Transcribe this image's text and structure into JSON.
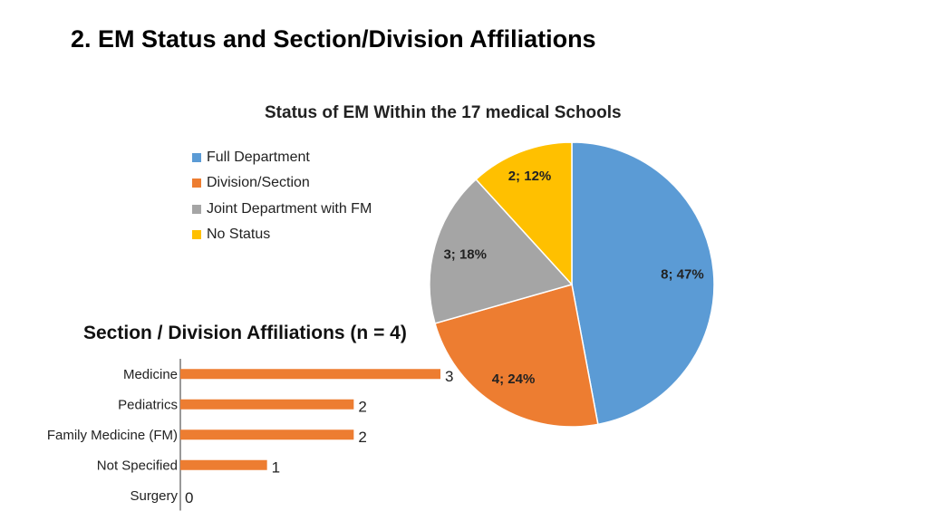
{
  "slide": {
    "title": "2. EM Status and Section/Division Affiliations"
  },
  "chart_data": [
    {
      "type": "pie",
      "title": "Status of EM Within the 17 medical Schools",
      "legend_position": "left",
      "series": [
        {
          "name": "Full Department",
          "value": 8,
          "percent": 47,
          "label": "8; 47%",
          "color": "#5b9bd5"
        },
        {
          "name": "Division/Section",
          "value": 4,
          "percent": 24,
          "label": "4; 24%",
          "color": "#ed7d31"
        },
        {
          "name": "Joint Department with FM",
          "value": 3,
          "percent": 18,
          "label": "3; 18%",
          "color": "#a5a5a5"
        },
        {
          "name": "No Status",
          "value": 2,
          "percent": 12,
          "label": "2; 12%",
          "color": "#ffc000"
        }
      ]
    },
    {
      "type": "bar",
      "orientation": "horizontal",
      "title": "Section / Division Affiliations (n = 4)",
      "categories": [
        "Medicine",
        "Pediatrics",
        "Family Medicine (FM)",
        "Not Specified",
        "Surgery"
      ],
      "values": [
        3,
        2,
        2,
        1,
        0
      ],
      "data_labels": [
        "3",
        "2",
        "2",
        "1",
        "0"
      ],
      "xlim": [
        0,
        3
      ],
      "color": "#ed7d31",
      "grid": false
    }
  ]
}
